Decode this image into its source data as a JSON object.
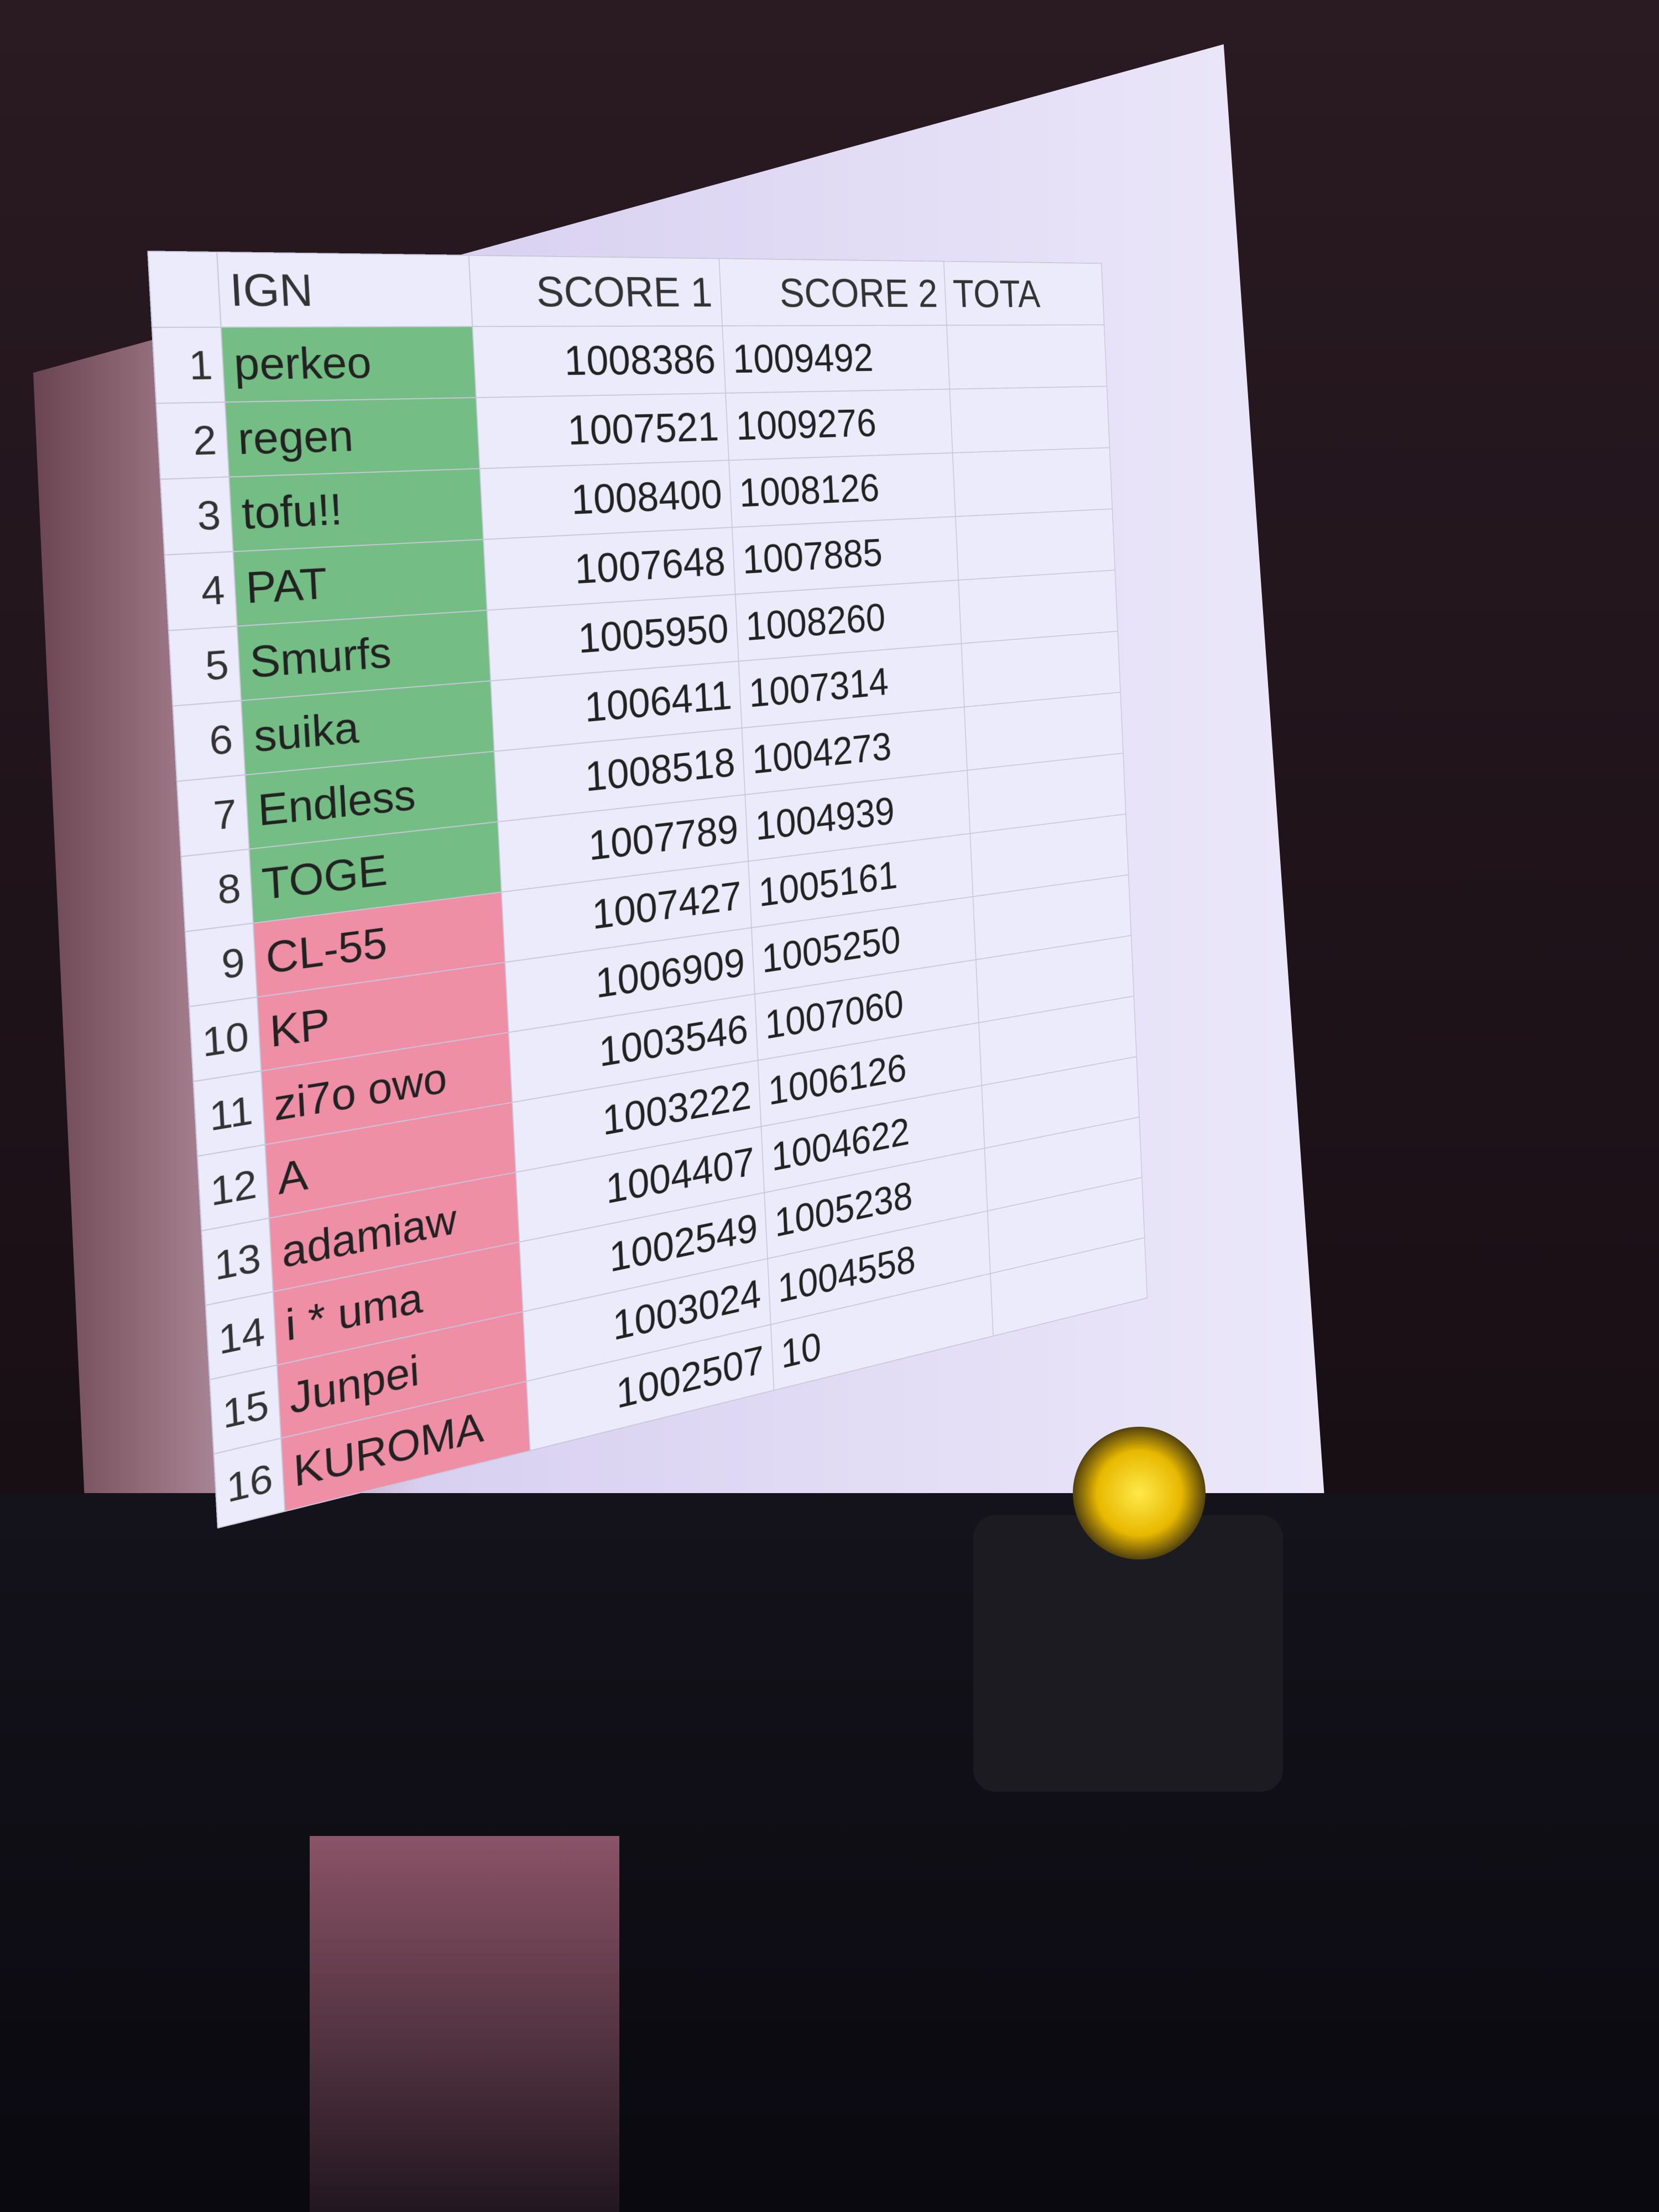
{
  "table": {
    "header": [
      "IGN",
      "SCORE 1",
      "SCORE 2",
      "TOTA"
    ],
    "rows": [
      [
        1,
        "perkeo",
        1008386,
        1009492
      ],
      [
        2,
        "regen",
        1007521,
        1009276
      ],
      [
        3,
        "tofu!!",
        1008400,
        1008126
      ],
      [
        4,
        "PAT",
        1007648,
        1007885
      ],
      [
        5,
        "Smurfs",
        1005950,
        1008260
      ],
      [
        6,
        "suika",
        1006411,
        1007314
      ],
      [
        7,
        "Endless",
        1008518,
        1004273
      ],
      [
        8,
        "TOGE",
        1007789,
        1004939
      ],
      [
        9,
        "CL-55",
        1007427,
        1005161
      ],
      [
        10,
        "KP",
        1006909,
        1005250
      ],
      [
        11,
        "zi7o owo",
        1003546,
        1007060
      ],
      [
        12,
        "A",
        1003222,
        1006126
      ],
      [
        13,
        "adamiaw",
        1004407,
        1004622
      ],
      [
        14,
        "i * uma",
        1002549,
        1005238
      ],
      [
        15,
        "Junpei",
        1003024,
        1004558
      ],
      [
        16,
        "KUROMA",
        1002507,
        "10"
      ]
    ]
  }
}
